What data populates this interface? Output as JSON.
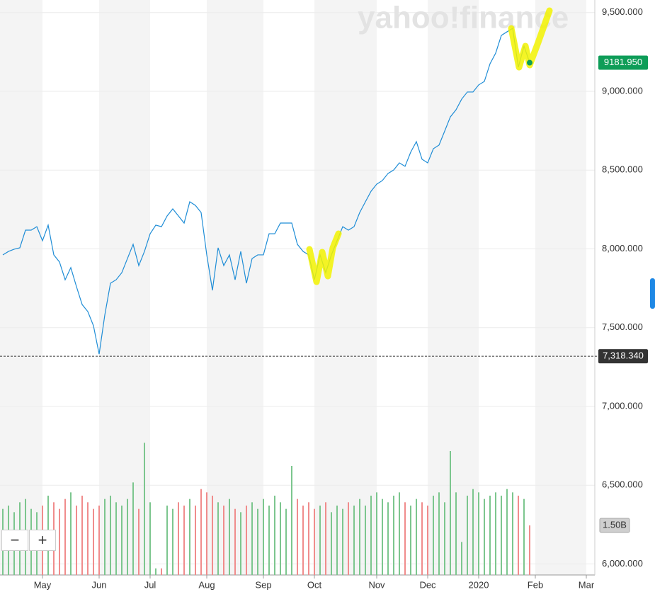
{
  "chart_data": {
    "type": "line",
    "watermark": "yahoo!finance",
    "color": "#1f8dd6",
    "categories": [
      null,
      null,
      null,
      null,
      null,
      null,
      null,
      "May",
      null,
      null,
      null,
      null,
      null,
      null,
      null,
      null,
      null,
      "Jun",
      null,
      null,
      null,
      null,
      null,
      null,
      null,
      null,
      "Jul",
      null,
      null,
      null,
      null,
      null,
      null,
      null,
      null,
      null,
      "Aug",
      null,
      null,
      null,
      null,
      null,
      null,
      null,
      null,
      null,
      "Sep",
      null,
      null,
      null,
      null,
      null,
      null,
      null,
      null,
      "Oct",
      null,
      null,
      null,
      null,
      null,
      null,
      null,
      null,
      null,
      null,
      "Nov",
      null,
      null,
      null,
      null,
      null,
      null,
      null,
      null,
      "Dec",
      null,
      null,
      null,
      null,
      null,
      null,
      null,
      null,
      "2020",
      null,
      null,
      null,
      null,
      null,
      null,
      null,
      null,
      null,
      "Feb",
      null,
      null,
      null,
      null,
      null,
      null,
      null,
      null,
      "Mar",
      null
    ],
    "values": [
      7962,
      7984,
      7998,
      8007,
      8119,
      8119,
      8141,
      8052,
      8151,
      7962,
      7917,
      7804,
      7881,
      7760,
      7647,
      7602,
      7512,
      7332,
      7580,
      7782,
      7804,
      7849,
      7939,
      8029,
      7894,
      7984,
      8096,
      8151,
      8141,
      8209,
      8254,
      8209,
      8164,
      8299,
      8276,
      8231,
      7962,
      7737,
      8007,
      7894,
      7962,
      7804,
      7984,
      7782,
      7939,
      7962,
      7962,
      8096,
      8096,
      8164,
      8164,
      8164,
      8029,
      7984,
      7962,
      7804,
      7962,
      7849,
      7962,
      8052,
      8141,
      8119,
      8141,
      8231,
      8299,
      8366,
      8411,
      8434,
      8479,
      8501,
      8546,
      8524,
      8614,
      8681,
      8569,
      8546,
      8636,
      8659,
      8748,
      8838,
      8883,
      8951,
      8996,
      8996,
      9041,
      9063,
      9175,
      9243,
      9355,
      9378,
      9400,
      9153,
      9288,
      9182,
      null,
      null,
      null,
      null,
      null,
      null,
      null,
      null,
      null,
      null,
      null
    ],
    "ylim": [
      5930,
      9580
    ],
    "yticks": [
      {
        "value": 6000,
        "label": "6,000.000"
      },
      {
        "value": 6500,
        "label": "6,500.000"
      },
      {
        "value": 7000,
        "label": "7,000.000"
      },
      {
        "value": 7500,
        "label": "7,500.000"
      },
      {
        "value": 8000,
        "label": "8,000.000"
      },
      {
        "value": 8500,
        "label": "8,500.000"
      },
      {
        "value": 9000,
        "label": "9,000.000"
      },
      {
        "value": 9500,
        "label": "9,500.000"
      }
    ],
    "grid": true,
    "last_price": {
      "value": 9181.95,
      "label": "9181.950",
      "color": "#0e9d58"
    },
    "reference_line": {
      "value": 7318.34,
      "label": "7,318.340",
      "color": "#333333"
    },
    "volume": {
      "values": [
        2.0,
        2.1,
        1.9,
        2.2,
        2.3,
        2.0,
        1.9,
        2.1,
        2.4,
        2.2,
        2.0,
        2.3,
        2.5,
        2.1,
        2.4,
        2.2,
        2.0,
        2.1,
        2.3,
        2.4,
        2.2,
        2.1,
        2.3,
        2.8,
        2.0,
        4.0,
        2.2,
        0.2,
        0.2,
        2.1,
        2.0,
        2.2,
        2.1,
        2.3,
        2.1,
        2.6,
        2.5,
        2.4,
        2.2,
        2.1,
        2.3,
        2.0,
        1.9,
        2.1,
        2.2,
        2.0,
        2.3,
        2.1,
        2.4,
        2.2,
        2.0,
        3.3,
        2.3,
        2.1,
        2.2,
        2.0,
        2.1,
        2.2,
        1.9,
        2.1,
        2.0,
        2.2,
        2.1,
        2.3,
        2.1,
        2.4,
        2.5,
        2.3,
        2.2,
        2.4,
        2.5,
        2.2,
        2.1,
        2.3,
        2.2,
        2.1,
        2.4,
        2.5,
        2.2,
        3.75,
        2.5,
        1.0,
        2.4,
        2.6,
        2.5,
        2.3,
        2.4,
        2.5,
        2.4,
        2.6,
        2.5,
        2.4,
        2.3,
        1.5,
        null,
        null,
        null,
        null,
        null,
        null,
        null,
        null,
        null,
        null,
        null
      ],
      "y2lim": [
        0,
        17.4
      ],
      "up_color": "#7cc68e",
      "down_color": "#f08c8c",
      "tag": {
        "value": 1.5,
        "label": "1.50B"
      }
    },
    "zoom_out": "−",
    "zoom_in": "+"
  }
}
